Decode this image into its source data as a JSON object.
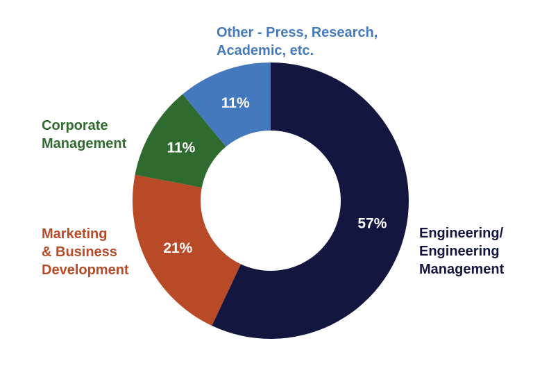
{
  "chart_data": {
    "type": "pie",
    "variant": "donut",
    "title": "",
    "series": [
      {
        "name": "",
        "slices": [
          {
            "label_lines": [
              "Engineering/",
              "Engineering",
              "Management"
            ],
            "value": 57,
            "value_label": "57%",
            "color": "#131740",
            "label_color": "#131740"
          },
          {
            "label_lines": [
              "Marketing",
              "& Business",
              "Development"
            ],
            "value": 21,
            "value_label": "21%",
            "color": "#B84A28",
            "label_color": "#B84A28"
          },
          {
            "label_lines": [
              "Corporate",
              "Management"
            ],
            "value": 11,
            "value_label": "11%",
            "color": "#2F6A2F",
            "label_color": "#2F6A2F"
          },
          {
            "label_lines": [
              "Other - Press, Research,",
              "Academic, etc."
            ],
            "value": 11,
            "value_label": "11%",
            "color": "#4579BE",
            "label_color": "#4579BE"
          }
        ]
      }
    ],
    "start": "12 o'clock",
    "direction": "clockwise",
    "legend": "none"
  }
}
